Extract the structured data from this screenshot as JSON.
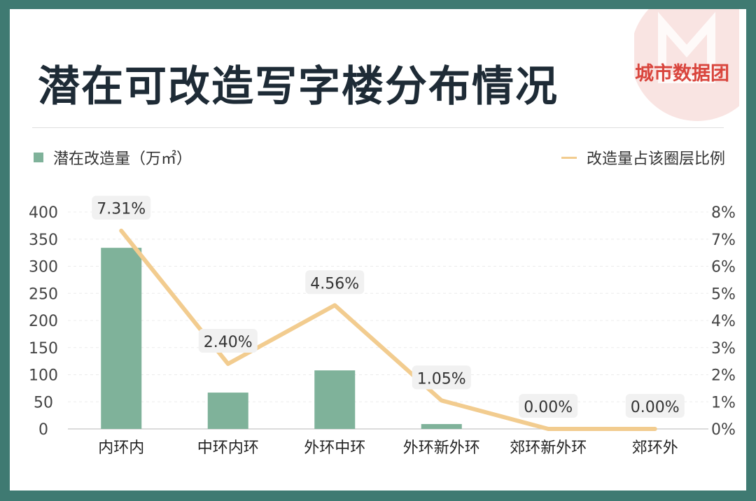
{
  "header": {
    "title": "潜在可改造写字楼分布情况",
    "brand": "城市数据团"
  },
  "legend": {
    "bar_label": "潜在改造量（万㎡）",
    "line_label": "改造量占该圈层比例"
  },
  "colors": {
    "frame": "#3f7a72",
    "bar": "#7fb29a",
    "line": "#f2cc8f",
    "title": "#1e2b36",
    "brand": "#d9453d"
  },
  "chart_data": {
    "type": "bar",
    "categories": [
      "内环内",
      "中环内环",
      "外环中环",
      "外环新外环",
      "郊环新外环",
      "郊环外"
    ],
    "series": [
      {
        "type": "bar",
        "axis": "left",
        "values": [
          334,
          67,
          108,
          9,
          0,
          0
        ]
      },
      {
        "type": "line",
        "axis": "right",
        "values": [
          7.31,
          2.4,
          4.56,
          1.05,
          0.0,
          0.0
        ],
        "labels": [
          "7.31%",
          "2.40%",
          "4.56%",
          "1.05%",
          "0.00%",
          "0.00%"
        ]
      }
    ],
    "y_left": {
      "ylim": [
        0,
        400
      ],
      "ticks": [
        "0",
        "50",
        "100",
        "150",
        "200",
        "250",
        "300",
        "350",
        "400"
      ]
    },
    "y_right": {
      "ylim": [
        0,
        8
      ],
      "ticks": [
        "0%",
        "1%",
        "2%",
        "3%",
        "4%",
        "5%",
        "6%",
        "7%",
        "8%"
      ]
    },
    "grid": true,
    "legend_position": "top"
  }
}
